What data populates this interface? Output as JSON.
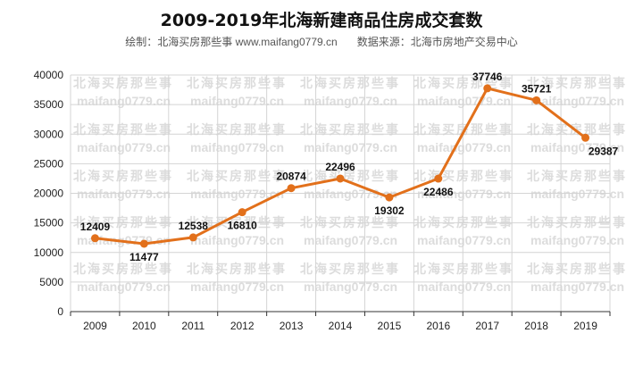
{
  "chart_data": {
    "type": "line",
    "title": "2009-2019年北海新建商品住房成交套数",
    "subtitle_author": "绘制：北海买房那些事 www.maifang0779.cn",
    "subtitle_source": "数据来源：北海市房地产交易中心",
    "watermark": [
      "北海买房那些事",
      "maifang0779.cn"
    ],
    "categories": [
      "2009",
      "2010",
      "2011",
      "2012",
      "2013",
      "2014",
      "2015",
      "2016",
      "2017",
      "2018",
      "2019"
    ],
    "values": [
      12409,
      11477,
      12538,
      16810,
      20874,
      22496,
      19302,
      22486,
      37746,
      35721,
      29387
    ],
    "label_positions": [
      "above",
      "below",
      "above",
      "below",
      "above",
      "above",
      "below",
      "below",
      "above",
      "above",
      "below"
    ],
    "yticks": [
      0,
      5000,
      10000,
      15000,
      20000,
      25000,
      30000,
      35000,
      40000
    ],
    "ylim": [
      0,
      40000
    ],
    "grid": true,
    "line_color": "#e2701b",
    "xlabel": "",
    "ylabel": ""
  }
}
